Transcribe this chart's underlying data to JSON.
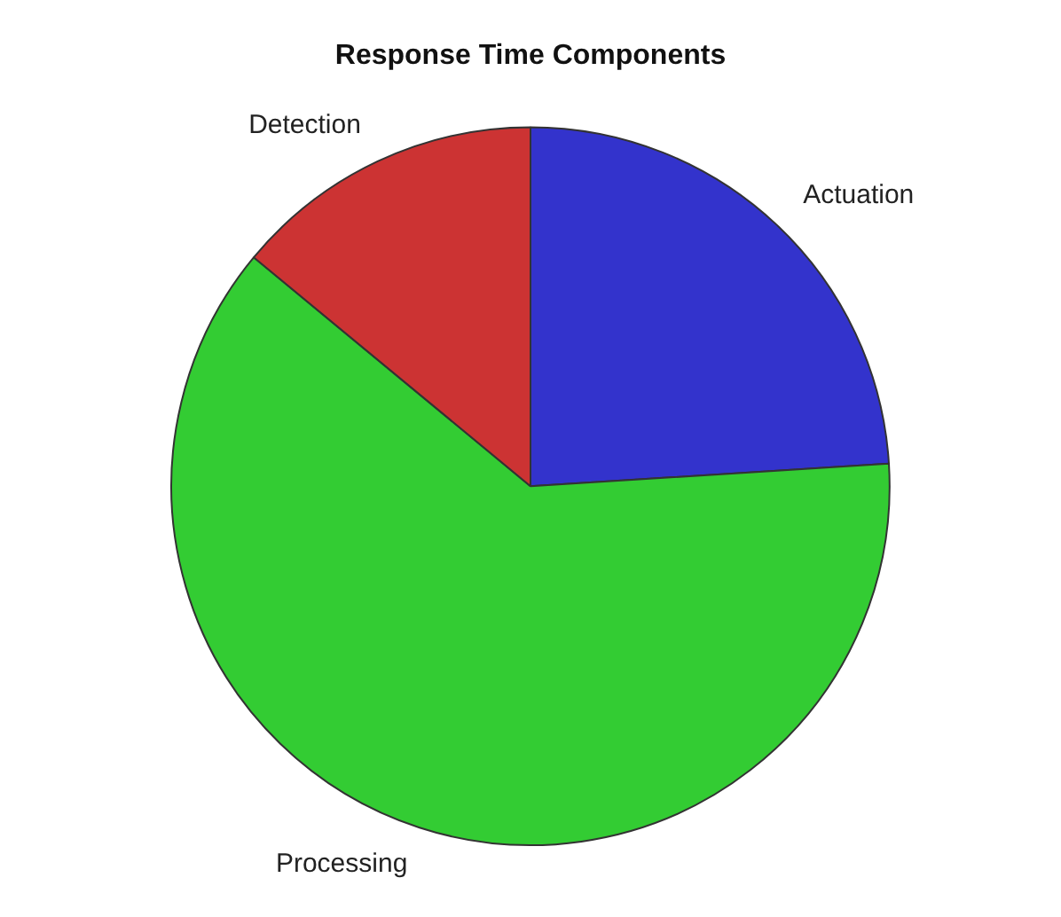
{
  "chart_data": {
    "type": "pie",
    "title": "Response Time Components",
    "categories": [
      "Actuation",
      "Processing",
      "Detection"
    ],
    "values": [
      24,
      62,
      14
    ],
    "colors": [
      "#3333cc",
      "#33cc33",
      "#cc3333"
    ],
    "legend": false
  }
}
